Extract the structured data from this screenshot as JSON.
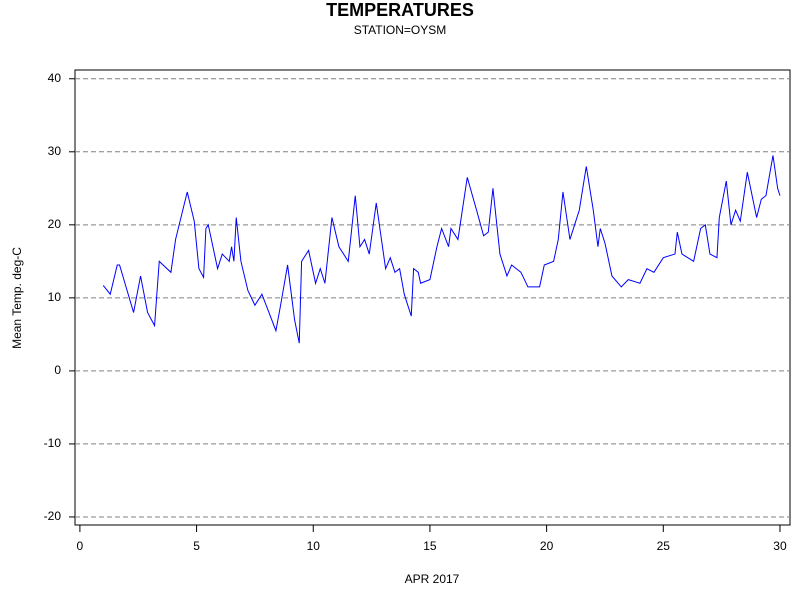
{
  "chart_data": {
    "type": "line",
    "title": "TEMPERATURES",
    "subtitle": "STATION=OYSM",
    "x_label": "APR 2017",
    "y_label": "Mean Temp. deg-C",
    "color": "#0000ff",
    "grid": true,
    "xlim": [
      -0.21,
      30.43
    ],
    "xticks": [
      0,
      5,
      10,
      15,
      20,
      25,
      30
    ],
    "ylim": [
      -21.1,
      41.2
    ],
    "yticks": [
      -20,
      -10,
      0,
      10,
      20,
      30,
      40
    ],
    "x": [
      1.0,
      1.3,
      1.6,
      1.7,
      2.3,
      2.6,
      2.9,
      3.2,
      3.4,
      3.9,
      4.1,
      4.6,
      4.9,
      5.1,
      5.3,
      5.4,
      5.5,
      5.9,
      6.1,
      6.4,
      6.5,
      6.6,
      6.7,
      6.9,
      7.2,
      7.5,
      7.8,
      8.1,
      8.4,
      8.6,
      8.9,
      9.2,
      9.4,
      9.5,
      9.8,
      10.1,
      10.3,
      10.5,
      10.8,
      11.1,
      11.5,
      11.8,
      12.0,
      12.2,
      12.4,
      12.7,
      13.1,
      13.3,
      13.5,
      13.7,
      13.9,
      14.2,
      14.3,
      14.5,
      14.6,
      15.0,
      15.3,
      15.5,
      15.8,
      15.9,
      16.2,
      16.6,
      17.0,
      17.3,
      17.5,
      17.7,
      18.0,
      18.3,
      18.5,
      18.9,
      19.2,
      19.7,
      19.9,
      20.3,
      20.5,
      20.7,
      21.0,
      21.2,
      21.4,
      21.7,
      22.0,
      22.2,
      22.3,
      22.5,
      22.8,
      23.2,
      23.5,
      24.0,
      24.3,
      24.6,
      25.0,
      25.5,
      25.6,
      25.8,
      26.3,
      26.6,
      26.8,
      27.0,
      27.3,
      27.4,
      27.7,
      27.9,
      28.1,
      28.3,
      28.6,
      29.0,
      29.2,
      29.4,
      29.7,
      29.9,
      30.0
    ],
    "values": [
      11.7,
      10.5,
      14.5,
      14.5,
      8,
      13,
      8,
      6.2,
      15,
      13.5,
      18,
      24.5,
      20.5,
      14,
      12.8,
      19.5,
      20,
      14,
      16,
      15,
      17,
      15,
      21,
      15,
      11,
      9,
      10.5,
      8,
      5.5,
      9,
      14.5,
      7,
      3.8,
      15,
      16.5,
      12,
      14,
      12,
      21,
      17,
      15,
      24,
      17,
      18,
      16,
      23,
      14,
      15.5,
      13.5,
      14,
      10.5,
      7.5,
      14,
      13.5,
      12,
      12.5,
      17,
      19.5,
      17,
      19.5,
      18,
      26.5,
      22,
      18.5,
      19,
      25,
      16,
      13,
      14.5,
      13.5,
      11.5,
      11.5,
      14.5,
      15,
      18,
      24.5,
      18,
      20,
      22,
      28,
      22,
      17,
      19.5,
      17.5,
      13,
      11.5,
      12.5,
      12,
      14,
      13.5,
      15.5,
      16,
      19,
      16,
      15,
      19.5,
      20,
      16,
      15.5,
      21,
      26,
      20,
      22,
      20.5,
      27.2,
      21,
      23.5,
      24,
      29.5,
      25,
      24
    ]
  }
}
